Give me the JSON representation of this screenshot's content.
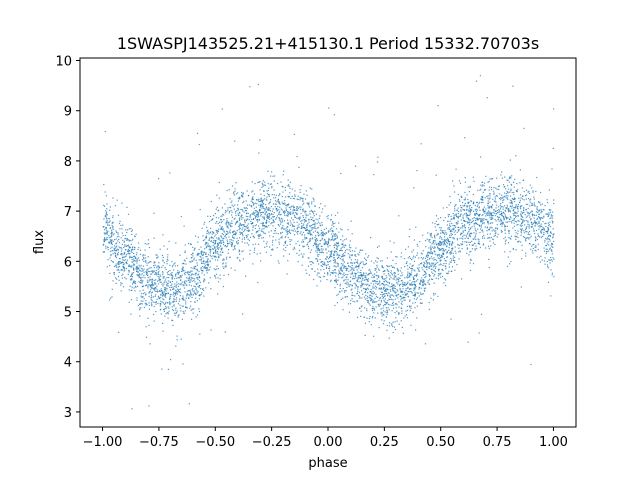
{
  "chart_data": {
    "type": "scatter",
    "title": "1SWASPJ143525.21+415130.1 Period 15332.70703s",
    "xlabel": "phase",
    "ylabel": "flux",
    "xlim": [
      -1.1,
      1.1
    ],
    "ylim": [
      2.7,
      10.05
    ],
    "xticks": [
      -1.0,
      -0.75,
      -0.5,
      -0.25,
      0.0,
      0.25,
      0.5,
      0.75,
      1.0
    ],
    "xtick_labels": [
      "−1.00",
      "−0.75",
      "−0.50",
      "−0.25",
      "0.00",
      "0.25",
      "0.50",
      "0.75",
      "1.00"
    ],
    "yticks": [
      3,
      4,
      5,
      6,
      7,
      8,
      9,
      10
    ],
    "ytick_labels": [
      "3",
      "4",
      "5",
      "6",
      "7",
      "8",
      "9",
      "10"
    ],
    "grid": false,
    "color": "#1f77b4",
    "series": [
      {
        "x": [
          -1.0,
          -0.9,
          -0.8,
          -0.7,
          -0.6,
          -0.5,
          -0.4,
          -0.3,
          -0.2,
          -0.1,
          0.0,
          0.1,
          0.2,
          0.3,
          0.4,
          0.5,
          0.6,
          0.7,
          0.8,
          0.9,
          1.0
        ],
        "y": [
          6.6,
          6.1,
          5.6,
          5.45,
          5.7,
          6.4,
          6.75,
          6.95,
          6.95,
          6.7,
          6.25,
          5.8,
          5.45,
          5.4,
          5.65,
          6.3,
          6.75,
          6.95,
          7.0,
          6.85,
          6.5
        ],
        "spread": 0.35
      }
    ]
  }
}
